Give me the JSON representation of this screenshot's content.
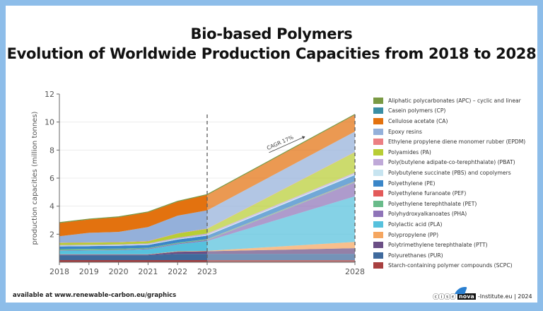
{
  "title_line1": "Bio-based Polymers",
  "title_line2": "Evolution of Worldwide Production Capacities from 2018 to 2028",
  "footer": {
    "source": "available at www.renewable-carbon.eu/graphics",
    "license_icons": "cc-by-nc-nd",
    "logo_text": "nova",
    "credit": "-Institute.eu | 2024"
  },
  "chart_data": {
    "type": "area",
    "stacked": true,
    "title": "Bio-based Polymers\nEvolution of Worldwide Production Capacities from 2018 to 2028",
    "ylabel": "production capacities (million tonnes)",
    "xlabel": "",
    "x": [
      2018,
      2019,
      2020,
      2021,
      2022,
      2023,
      2028
    ],
    "x_ticks": [
      "2018",
      "2019",
      "2020",
      "2021",
      "2022",
      "2023",
      "2028"
    ],
    "ylim": [
      0,
      12
    ],
    "y_ticks": [
      "2",
      "4",
      "6",
      "8",
      "10",
      "12"
    ],
    "grid": true,
    "legend_position": "right",
    "forecast_divider": 2023,
    "annotation": "CAGR 17%",
    "series": [
      {
        "name": "Starch-containing polymer compounds (SCPC)",
        "color": "#a84040",
        "values": [
          0.15,
          0.15,
          0.15,
          0.15,
          0.15,
          0.15,
          0.15
        ]
      },
      {
        "name": "Polyurethanes (PUR)",
        "color": "#3f6a9d",
        "values": [
          0.35,
          0.35,
          0.35,
          0.35,
          0.45,
          0.45,
          0.45
        ]
      },
      {
        "name": "Polytrimethylene terephthalate (PTT)",
        "color": "#6b4f85",
        "values": [
          0.05,
          0.05,
          0.05,
          0.05,
          0.15,
          0.18,
          0.4
        ]
      },
      {
        "name": "Polypropylene (PP)",
        "color": "#f5a660",
        "values": [
          0.02,
          0.02,
          0.02,
          0.02,
          0.03,
          0.03,
          0.45
        ]
      },
      {
        "name": "Polylactic acid (PLA)",
        "color": "#56c1dd",
        "values": [
          0.25,
          0.27,
          0.28,
          0.35,
          0.5,
          0.7,
          3.25
        ]
      },
      {
        "name": "Polyhydroxyalkanoates (PHA)",
        "color": "#8f74b8",
        "values": [
          0.03,
          0.03,
          0.04,
          0.05,
          0.06,
          0.07,
          1.0
        ]
      },
      {
        "name": "Polyethylene terephthalate (PET)",
        "color": "#69bb8a",
        "values": [
          0.08,
          0.08,
          0.08,
          0.06,
          0.06,
          0.06,
          0.05
        ]
      },
      {
        "name": "Polyethylene furanoate (PEF)",
        "color": "#e35a5a",
        "values": [
          0,
          0,
          0,
          0,
          0,
          0.01,
          0.02
        ]
      },
      {
        "name": "Polyethylene (PE)",
        "color": "#3a86c8",
        "values": [
          0.2,
          0.2,
          0.2,
          0.2,
          0.22,
          0.25,
          0.45
        ]
      },
      {
        "name": "Polybutylene succinate (PBS) and copolymers",
        "color": "#c7e4f0",
        "values": [
          0.05,
          0.05,
          0.05,
          0.05,
          0.05,
          0.05,
          0.08
        ]
      },
      {
        "name": "Poly(butylene adipate-co-terephthalate) (PBAT)",
        "color": "#bfa9d8",
        "values": [
          0.05,
          0.05,
          0.05,
          0.06,
          0.08,
          0.1,
          0.1
        ]
      },
      {
        "name": "Polyamides (PA)",
        "color": "#b8cd35",
        "values": [
          0.15,
          0.15,
          0.15,
          0.15,
          0.3,
          0.33,
          1.45
        ]
      },
      {
        "name": "Ethylene propylene diene monomer rubber (EPDM)",
        "color": "#ec7f83",
        "values": [
          0.02,
          0.02,
          0.02,
          0.02,
          0.02,
          0.02,
          0.02
        ]
      },
      {
        "name": "Epoxy resins",
        "color": "#94b0da",
        "values": [
          0.45,
          0.68,
          0.72,
          1.0,
          1.25,
          1.3,
          1.45
        ]
      },
      {
        "name": "Cellulose acetate (CA)",
        "color": "#e3720f",
        "values": [
          0.95,
          0.95,
          1.05,
          1.05,
          1.0,
          1.1,
          1.2
        ]
      },
      {
        "name": "Casein polymers (CP)",
        "color": "#3a8ea4",
        "values": [
          0.01,
          0.01,
          0.01,
          0.01,
          0.01,
          0.01,
          0.01
        ]
      },
      {
        "name": "Aliphatic polycarbonates (APC) – cyclic and linear",
        "color": "#7a9a44",
        "values": [
          0.02,
          0.02,
          0.02,
          0.02,
          0.02,
          0.02,
          0.02
        ]
      }
    ]
  }
}
